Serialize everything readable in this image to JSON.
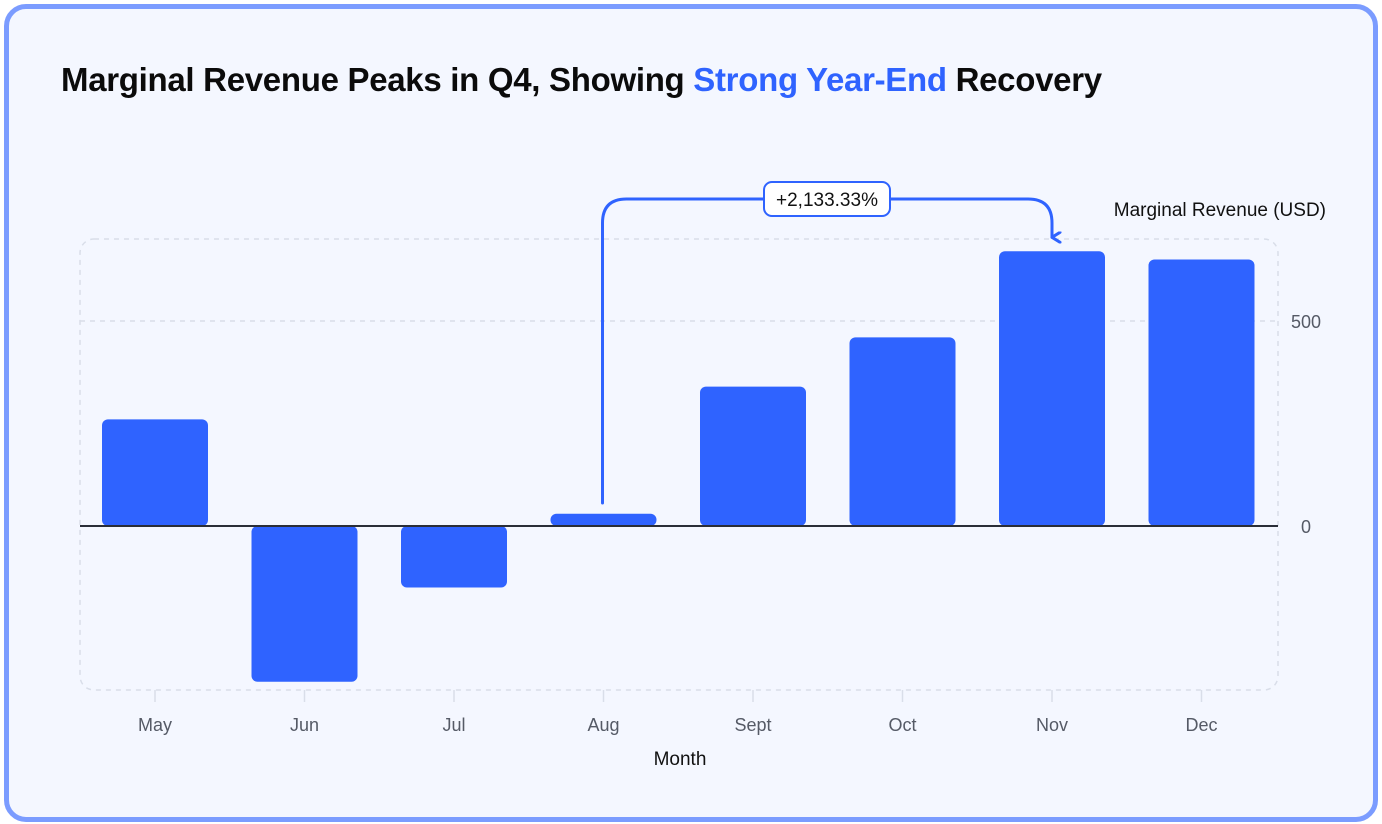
{
  "colors": {
    "accent": "#2f63ff",
    "border": "#7b9cff",
    "background": "#f4f7ff"
  },
  "title": {
    "part1": "Marginal Revenue Peaks in Q4, Showing ",
    "highlight": "Strong Year-End",
    "part2": " Recovery"
  },
  "chart_data": {
    "type": "bar",
    "categories": [
      "May",
      "Jun",
      "Jul",
      "Aug",
      "Sept",
      "Oct",
      "Nov",
      "Dec"
    ],
    "series": [
      {
        "values": [
          260,
          -380,
          -150,
          30,
          340,
          460,
          670,
          650
        ]
      }
    ],
    "xlabel": "Month",
    "ylabel": "Marginal Revenue (USD)",
    "ylim": [
      -400,
      700
    ],
    "yticks": [
      0,
      500
    ],
    "y_axis_side": "right",
    "grid": true,
    "annotation": {
      "from": "Aug",
      "to": "Nov",
      "label": "+2,133.33%"
    }
  }
}
